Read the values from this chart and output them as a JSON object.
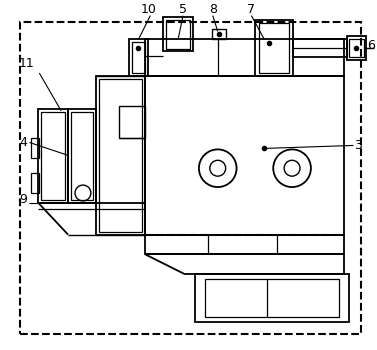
{
  "background_color": "#ffffff",
  "line_color": "#000000",
  "figsize": [
    3.77,
    3.5
  ],
  "dpi": 100
}
